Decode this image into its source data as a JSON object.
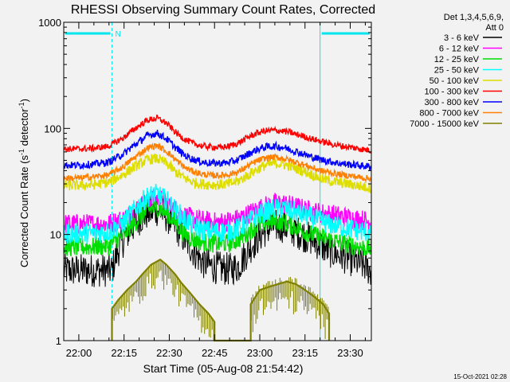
{
  "chart_data": {
    "type": "line",
    "title": "RHESSI Observing Summary Count Rates, Corrected",
    "xlabel": "Start Time (05-Aug-08 21:54:42)",
    "ylabel_parts": [
      "Corrected Count Rate (s",
      "-1",
      " detector",
      "-1",
      ")"
    ],
    "yscale": "log",
    "ylim": [
      1,
      1000
    ],
    "xlim": [
      -5,
      97
    ],
    "x_tick_labels": [
      "22:00",
      "22:15",
      "22:30",
      "22:45",
      "23:00",
      "23:15",
      "23:30"
    ],
    "x_tick_minutes": [
      0,
      15,
      30,
      45,
      60,
      75,
      90
    ],
    "y_ticks": [
      1,
      10,
      100,
      1000
    ],
    "y_tick_labels": [
      "1",
      "10",
      "100",
      "1000"
    ],
    "legend_header": [
      "Det 1,3,4,5,6,9,",
      "Att 0"
    ],
    "legend_position": "right",
    "timestamp": "15-Oct-2021 02:28",
    "night_marker": "N",
    "night_intervals": [
      [
        -5,
        11
      ],
      [
        80,
        97
      ]
    ],
    "series": [
      {
        "name": "3 - 6 keV",
        "color": "#000000",
        "x": [
          -5,
          0,
          5,
          10,
          11,
          13,
          15,
          17,
          20,
          23,
          26,
          29,
          32,
          35,
          38,
          41,
          44,
          47,
          50,
          53,
          56,
          59,
          62,
          65,
          68,
          71,
          74,
          77,
          80,
          83,
          86,
          89,
          92,
          95,
          97
        ],
        "y": [
          4.6,
          4.6,
          4.6,
          4.6,
          4.6,
          7,
          9,
          11,
          14,
          16,
          17,
          15,
          12,
          9,
          7,
          5.5,
          5,
          4.8,
          4.7,
          5,
          7,
          9,
          11,
          12,
          12,
          11,
          10,
          9,
          8,
          7,
          6.5,
          6,
          5.5,
          5,
          4.5
        ]
      },
      {
        "name": "6 - 12 keV",
        "color": "#ff00ff",
        "x": [
          -5,
          0,
          5,
          10,
          15,
          20,
          23,
          26,
          29,
          32,
          35,
          38,
          41,
          44,
          47,
          50,
          53,
          56,
          59,
          62,
          65,
          68,
          71,
          74,
          77,
          80,
          83,
          86,
          89,
          92,
          95,
          97
        ],
        "y": [
          12.5,
          12.5,
          12.5,
          12.6,
          14,
          18,
          21,
          22,
          20,
          17,
          15,
          14,
          13.5,
          13,
          13,
          13.5,
          14,
          15.5,
          17,
          18.5,
          19.5,
          19.5,
          18.5,
          17.5,
          16.5,
          16,
          15.5,
          15,
          14.5,
          14,
          13.5,
          13
        ]
      },
      {
        "name": "12 - 25 keV",
        "color": "#00dd00",
        "x": [
          -5,
          0,
          5,
          10,
          15,
          20,
          23,
          26,
          29,
          32,
          35,
          38,
          41,
          44,
          47,
          50,
          53,
          56,
          59,
          62,
          65,
          68,
          71,
          74,
          77,
          80,
          83,
          86,
          89,
          92,
          95,
          97
        ],
        "y": [
          7.6,
          7.6,
          7.7,
          7.8,
          10,
          14,
          17,
          18,
          16,
          13,
          10,
          9,
          8.5,
          8.3,
          8.2,
          8.3,
          9,
          10.5,
          12,
          13,
          13.5,
          13,
          12,
          11,
          10,
          9.5,
          9,
          8.5,
          8,
          7.8,
          7.5,
          7.4
        ]
      },
      {
        "name": "25 - 50 keV",
        "color": "#00ffff",
        "x": [
          -5,
          0,
          5,
          10,
          15,
          20,
          23,
          26,
          29,
          32,
          35,
          38,
          41,
          44,
          47,
          50,
          53,
          56,
          59,
          62,
          65,
          68,
          71,
          74,
          77,
          80,
          83,
          86,
          89,
          92,
          95,
          97
        ],
        "y": [
          10.2,
          10.2,
          10.3,
          10.6,
          13,
          19,
          23,
          24,
          21,
          17,
          14,
          12,
          11,
          10.7,
          10.6,
          10.8,
          11.5,
          13,
          15,
          16.5,
          17.5,
          17.5,
          16.5,
          15.5,
          14.5,
          13.5,
          12.5,
          12,
          11.5,
          11,
          10.7,
          10.5
        ]
      },
      {
        "name": "50 - 100 keV",
        "color": "#dddd00",
        "x": [
          -5,
          0,
          5,
          10,
          15,
          20,
          23,
          26,
          29,
          32,
          35,
          38,
          41,
          44,
          47,
          50,
          53,
          56,
          59,
          62,
          65,
          68,
          71,
          74,
          77,
          80,
          83,
          86,
          89,
          92,
          95,
          97
        ],
        "y": [
          29,
          29,
          29.5,
          31,
          37,
          46,
          51,
          52,
          47,
          39,
          34,
          31,
          30,
          29.5,
          29.5,
          30,
          32,
          36,
          41,
          45,
          47,
          46,
          43,
          40,
          37,
          34,
          32,
          31,
          30,
          29,
          28,
          27.5
        ]
      },
      {
        "name": "100 - 300 keV",
        "color": "#ff0000",
        "x": [
          -5,
          0,
          5,
          10,
          15,
          20,
          23,
          26,
          29,
          32,
          35,
          38,
          41,
          44,
          47,
          50,
          53,
          56,
          59,
          62,
          65,
          68,
          71,
          74,
          77,
          80,
          83,
          86,
          89,
          92,
          95,
          97
        ],
        "y": [
          64,
          64,
          65,
          68,
          82,
          106,
          120,
          125,
          112,
          92,
          79,
          72,
          68,
          67,
          66,
          68,
          73,
          82,
          90,
          95,
          96,
          94,
          90,
          85,
          80,
          76,
          72,
          69,
          67,
          65,
          63,
          62
        ]
      },
      {
        "name": "300 - 800 keV",
        "color": "#0000ff",
        "x": [
          -5,
          0,
          5,
          10,
          15,
          20,
          23,
          26,
          29,
          32,
          35,
          38,
          41,
          44,
          47,
          50,
          53,
          56,
          59,
          62,
          65,
          68,
          71,
          74,
          77,
          80,
          83,
          86,
          89,
          92,
          95,
          97
        ],
        "y": [
          45,
          45,
          46,
          48,
          58,
          75,
          86,
          90,
          80,
          66,
          56,
          51,
          48,
          47,
          47,
          48,
          51,
          57,
          63,
          67,
          68,
          66,
          62,
          58,
          54,
          51,
          49,
          47,
          46,
          45,
          44,
          43.5
        ]
      },
      {
        "name": "800 - 7000 keV",
        "color": "#ff8000",
        "x": [
          -5,
          0,
          5,
          10,
          15,
          20,
          23,
          26,
          29,
          32,
          35,
          38,
          41,
          44,
          47,
          50,
          53,
          56,
          59,
          62,
          65,
          68,
          71,
          74,
          77,
          80,
          83,
          86,
          89,
          92,
          95,
          97
        ],
        "y": [
          34,
          34,
          35,
          36.5,
          44,
          57,
          66,
          69,
          61,
          51,
          43,
          39,
          37,
          36,
          36,
          37,
          39,
          44,
          49,
          52.5,
          53.5,
          52,
          49,
          46,
          43,
          40,
          38.5,
          37,
          36,
          35,
          34,
          33.5
        ]
      },
      {
        "name": "7000 - 15000 keV",
        "color": "#808000",
        "x": [
          11,
          11,
          13,
          16,
          19,
          21,
          24,
          27,
          29,
          32,
          34,
          37,
          40,
          43,
          45,
          45,
          57,
          57,
          60,
          63,
          66,
          69,
          72,
          75,
          78,
          81,
          83,
          83
        ],
        "y": [
          1,
          2,
          2.4,
          3,
          3.6,
          4.2,
          5.2,
          5.8,
          5.2,
          4.2,
          3.5,
          2.8,
          2.2,
          1.8,
          1.5,
          1,
          1,
          2.2,
          3,
          3.2,
          3.4,
          3.6,
          3.4,
          3.0,
          2.6,
          2.2,
          1.8,
          1
        ]
      }
    ]
  }
}
